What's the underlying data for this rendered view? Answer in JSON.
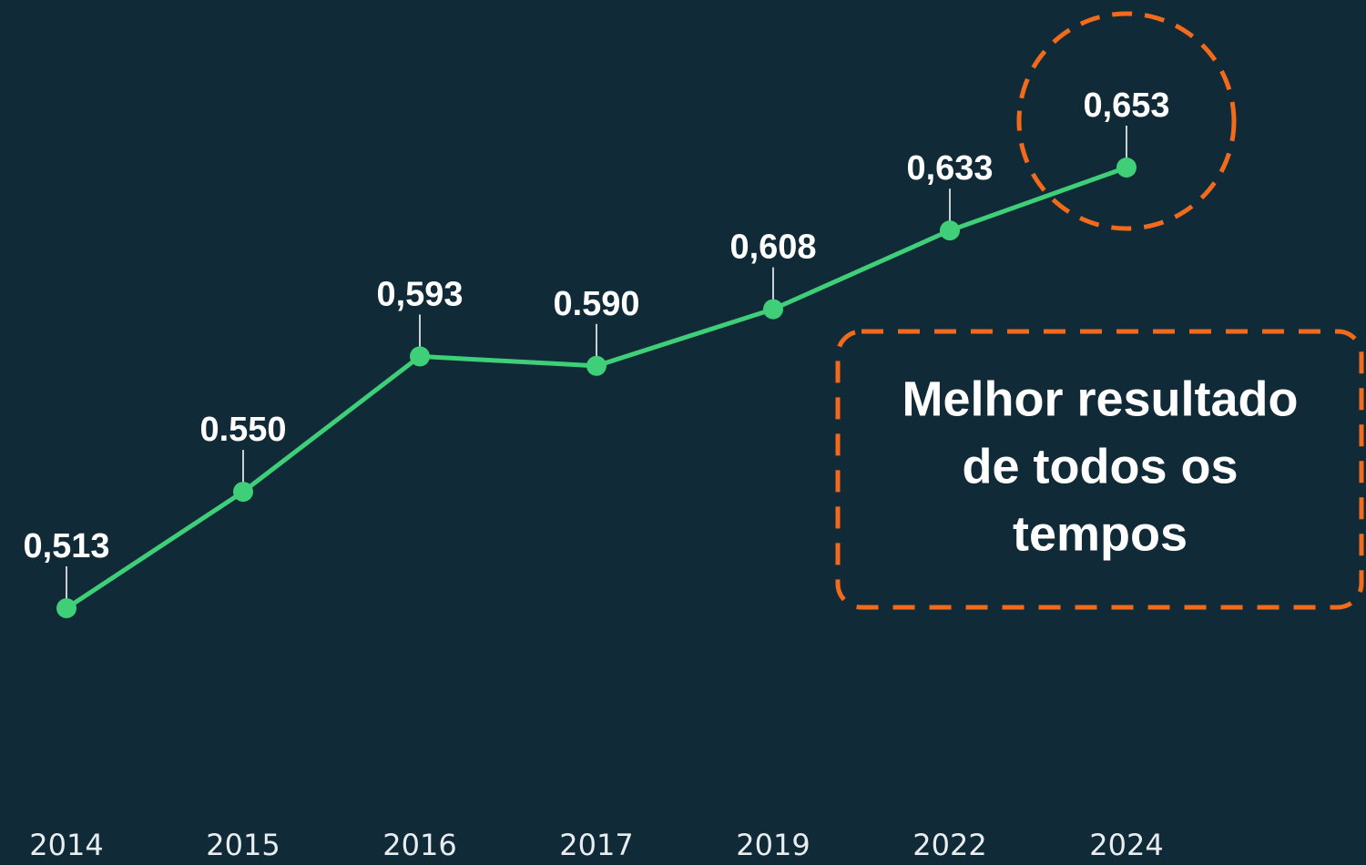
{
  "chart_data": {
    "type": "line",
    "categories": [
      "2014",
      "2015",
      "2016",
      "2017",
      "2019",
      "2022",
      "2024"
    ],
    "series": [
      {
        "color": "#3ecf78",
        "values": [
          0.513,
          0.55,
          0.593,
          0.59,
          0.608,
          0.633,
          0.653
        ],
        "value_labels": [
          "0,513",
          "0.550",
          "0,593",
          "0.590",
          "0,608",
          "0,633",
          "0,653"
        ]
      }
    ],
    "annotation": [
      "Melhor resultado",
      "de todos os",
      "tempos"
    ],
    "annotation_color": "#f26a1b"
  }
}
